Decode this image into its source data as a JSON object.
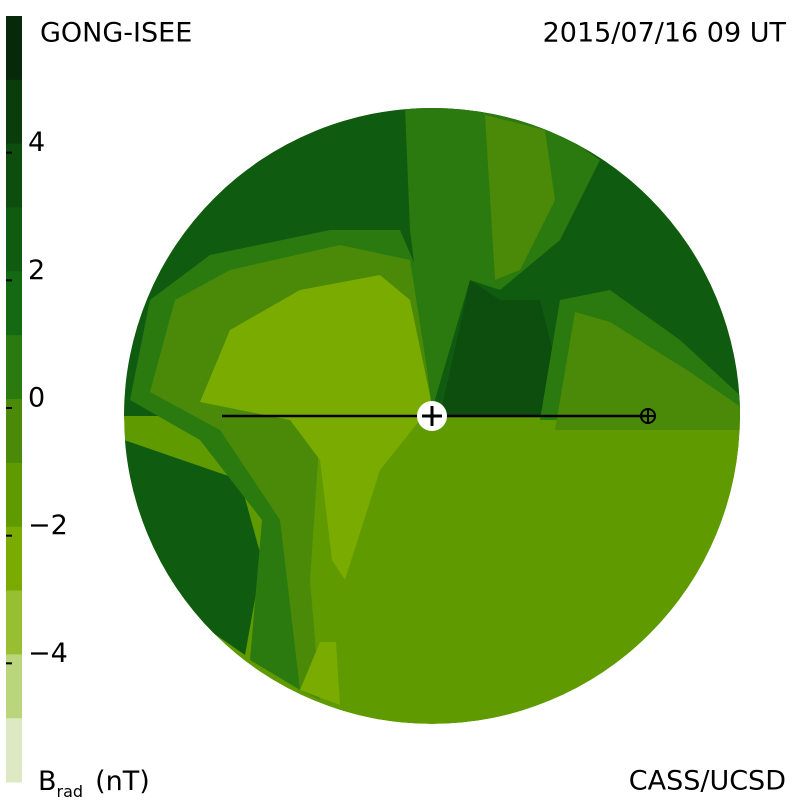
{
  "chart_data": {
    "type": "heatmap",
    "title": "GONG-ISEE",
    "subtitle": "2015/07/16 09 UT",
    "credit": "CASS/UCSD",
    "colorbar": {
      "label": {
        "symbol": "B",
        "subscript": "rad",
        "unit": "(nT)"
      },
      "lim": [
        -6,
        6
      ],
      "ticks": [
        4,
        2,
        0,
        {
          "value": -2,
          "label": "−2"
        },
        {
          "value": -4,
          "label": "−4"
        }
      ],
      "colors": [
        "#08280a",
        "#0b3d0c",
        "#0d4e0e",
        "#0f5c10",
        "#136a12",
        "#2a7a10",
        "#4a8a08",
        "#5f9a00",
        "#7aab00",
        "#98bf32",
        "#bad67c",
        "#dde9c2"
      ]
    }
  }
}
